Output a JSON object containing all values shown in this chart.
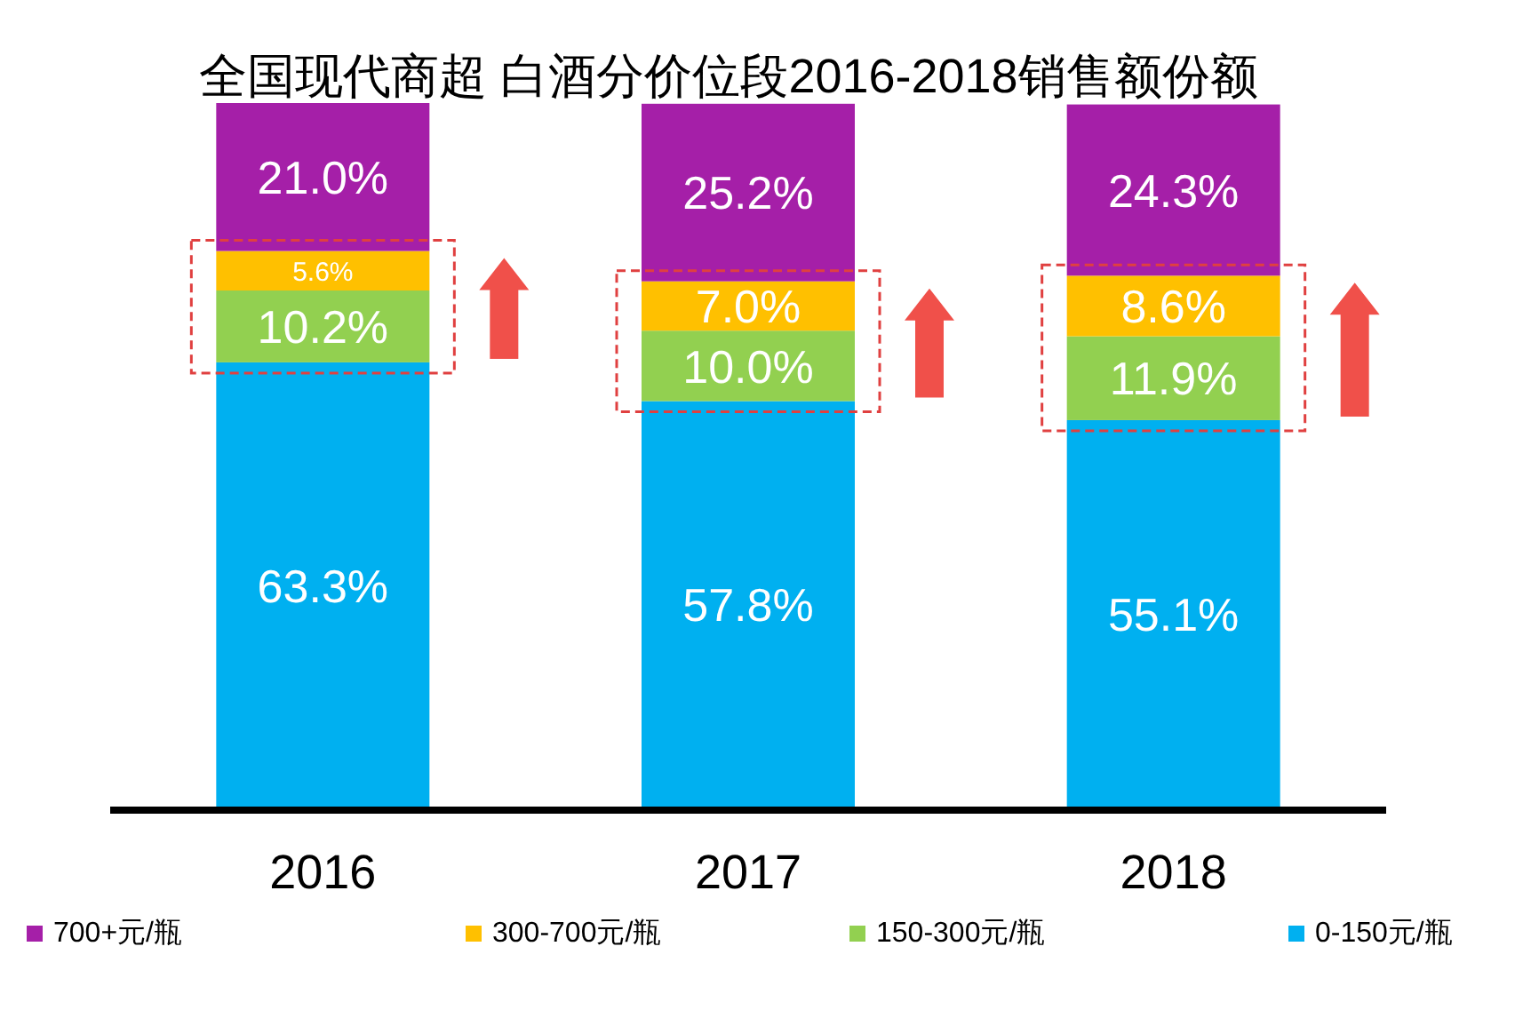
{
  "chart_data": {
    "type": "bar",
    "title": "全国现代商超 白酒分价位段2016-2018销售额份额",
    "stacked": true,
    "legend": "bottom",
    "categories": [
      "2016",
      "2017",
      "2018"
    ],
    "series": [
      {
        "name": "0-150元/瓶",
        "color": "#00b0f0",
        "values": [
          63.3,
          57.8,
          55.1
        ],
        "value_labels": [
          "63.3%",
          "57.8%",
          "55.1%"
        ]
      },
      {
        "name": "150-300元/瓶",
        "color": "#92d050",
        "values": [
          10.2,
          10.0,
          11.9
        ],
        "value_labels": [
          "10.2%",
          "10.0%",
          "11.9%"
        ]
      },
      {
        "name": "300-700元/瓶",
        "color": "#ffc000",
        "values": [
          5.6,
          7.0,
          8.6
        ],
        "value_labels": [
          "5.6%",
          "7.0%",
          "8.6%"
        ]
      },
      {
        "name": "700+元/瓶",
        "color": "#a51fa8",
        "values": [
          21.0,
          25.2,
          24.3
        ],
        "value_labels": [
          "21.0%",
          "25.2%",
          "24.3%"
        ]
      }
    ]
  }
}
